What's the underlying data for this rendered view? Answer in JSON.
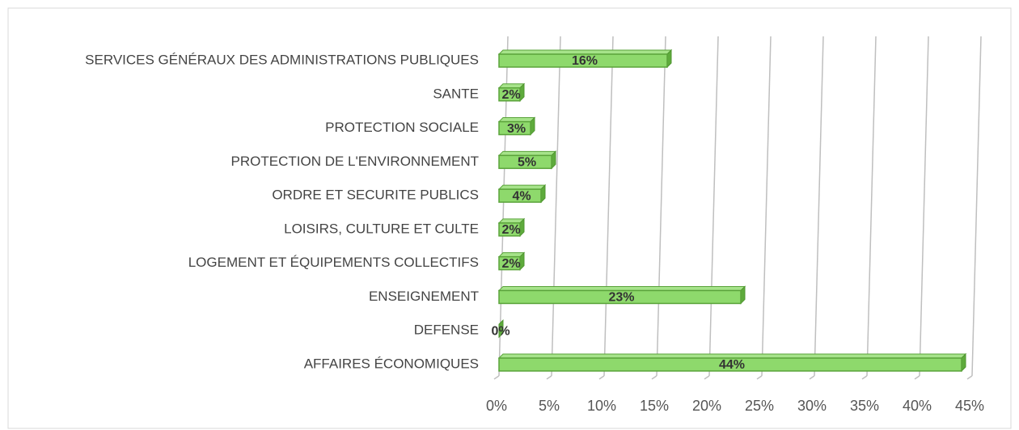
{
  "chart_data": {
    "type": "bar",
    "orientation": "horizontal",
    "categories": [
      "SERVICES GÉNÉRAUX DES ADMINISTRATIONS PUBLIQUES",
      "SANTE",
      "PROTECTION SOCIALE",
      "PROTECTION DE L'ENVIRONNEMENT",
      "ORDRE ET SECURITE PUBLICS",
      "LOISIRS, CULTURE ET CULTE",
      "LOGEMENT ET ÉQUIPEMENTS COLLECTIFS",
      "ENSEIGNEMENT",
      "DEFENSE",
      "AFFAIRES ÉCONOMIQUES"
    ],
    "values": [
      16,
      2,
      3,
      5,
      4,
      2,
      2,
      23,
      0,
      44
    ],
    "value_labels": [
      "16%",
      "2%",
      "3%",
      "5%",
      "4%",
      "2%",
      "2%",
      "23%",
      "0%",
      "44%"
    ],
    "color": "#8ed96c",
    "xlim": [
      0,
      45
    ],
    "xticks": [
      {
        "value": 0,
        "label": "0%"
      },
      {
        "value": 5,
        "label": "5%"
      },
      {
        "value": 10,
        "label": "10%"
      },
      {
        "value": 15,
        "label": "15%"
      },
      {
        "value": 20,
        "label": "20%"
      },
      {
        "value": 25,
        "label": "25%"
      },
      {
        "value": 30,
        "label": "30%"
      },
      {
        "value": 35,
        "label": "35%"
      },
      {
        "value": 40,
        "label": "40%"
      },
      {
        "value": 45,
        "label": "45%"
      }
    ],
    "grid": true
  }
}
